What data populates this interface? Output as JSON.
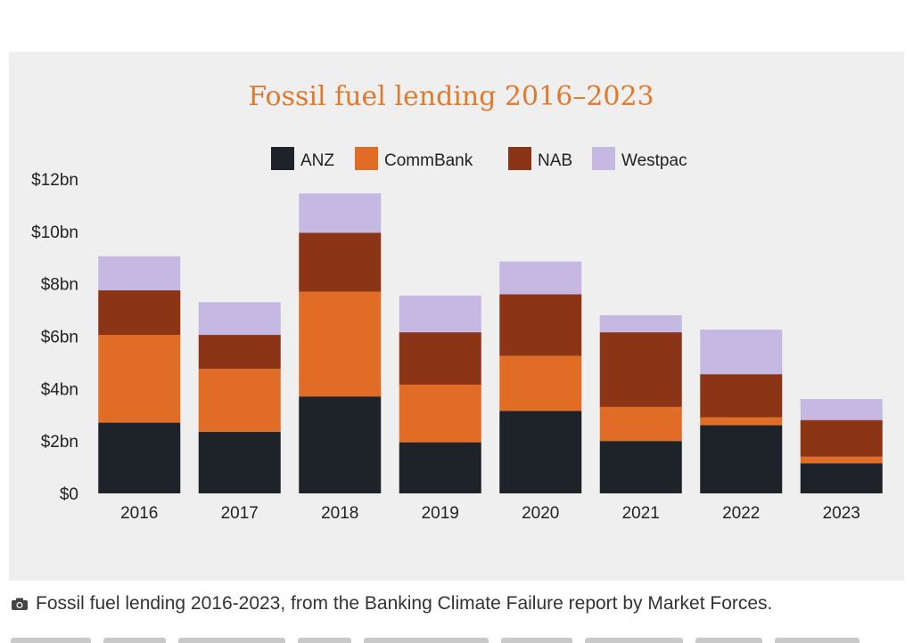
{
  "caption": {
    "text": "Fossil fuel lending 2016-2023, from the Banking Climate Failure report by Market Forces.",
    "icon": "camera-icon"
  },
  "chart_data": {
    "type": "bar",
    "stacked": true,
    "title": "Fossil fuel lending 2016–2023",
    "xlabel": "",
    "ylabel": "",
    "categories": [
      "2016",
      "2017",
      "2018",
      "2019",
      "2020",
      "2021",
      "2022",
      "2023"
    ],
    "y_ticks": [
      "$0",
      "$2bn",
      "$4bn",
      "$6bn",
      "$8bn",
      "$10bn",
      "$12bn"
    ],
    "y_tick_values": [
      0,
      2,
      4,
      6,
      8,
      10,
      12
    ],
    "ylim": [
      0,
      12
    ],
    "legend_position": "top-center",
    "grid": false,
    "series": [
      {
        "name": "ANZ",
        "color": "#1e2229",
        "values": [
          2.7,
          2.35,
          3.7,
          1.95,
          3.15,
          2.0,
          2.6,
          1.15
        ]
      },
      {
        "name": "CommBank",
        "color": "#e06c26",
        "values": [
          3.35,
          2.4,
          4.0,
          2.2,
          2.1,
          1.3,
          0.3,
          0.25
        ]
      },
      {
        "name": "NAB",
        "color": "#8b3516",
        "values": [
          1.7,
          1.3,
          2.25,
          2.0,
          2.35,
          2.85,
          1.65,
          1.4
        ]
      },
      {
        "name": "Westpac",
        "color": "#c5b8e2",
        "values": [
          1.3,
          1.25,
          1.5,
          1.4,
          1.25,
          0.65,
          1.7,
          0.8
        ]
      }
    ]
  }
}
